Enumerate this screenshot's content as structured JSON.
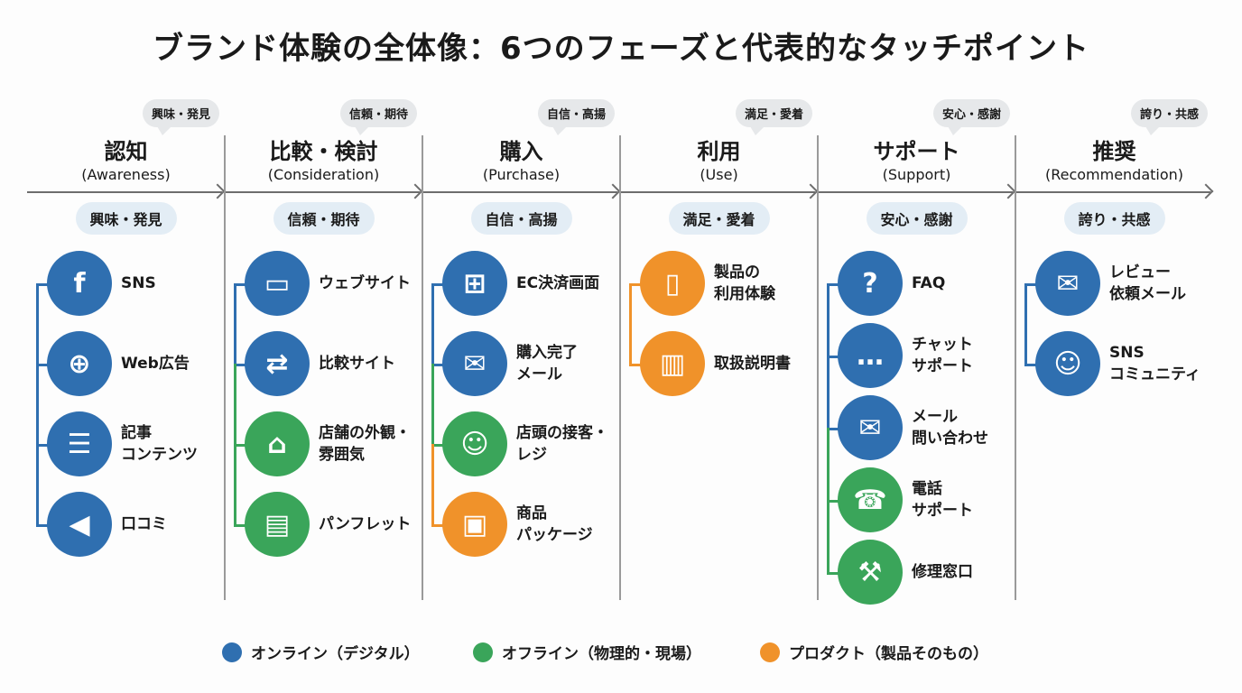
{
  "title": "ブランド体験の全体像：6つのフェーズと代表的なタッチポイント",
  "colors": {
    "online": "#2f6fb0",
    "offline": "#3aa55a",
    "product": "#f0922a"
  },
  "phases": [
    {
      "name": "認知",
      "en": "(Awareness)",
      "emotion": "興味・発見",
      "items": [
        {
          "label": "SNS",
          "icon": "sns-icon",
          "glyph": "f",
          "type": "online"
        },
        {
          "label": "Web広告",
          "icon": "globe-cursor-icon",
          "glyph": "⊕",
          "type": "online"
        },
        {
          "label": "記事\nコンテンツ",
          "icon": "article-icon",
          "glyph": "☰",
          "type": "online"
        },
        {
          "label": "口コミ",
          "icon": "megaphone-icon",
          "glyph": "◀",
          "type": "online"
        }
      ]
    },
    {
      "name": "比較・検討",
      "en": "(Consideration)",
      "emotion": "信頼・期待",
      "items": [
        {
          "label": "ウェブサイト",
          "icon": "monitor-search-icon",
          "glyph": "▭",
          "type": "online"
        },
        {
          "label": "比較サイト",
          "icon": "compare-docs-icon",
          "glyph": "⇄",
          "type": "online"
        },
        {
          "label": "店舗の外観・\n雰囲気",
          "icon": "storefront-icon",
          "glyph": "⌂",
          "type": "offline"
        },
        {
          "label": "パンフレット",
          "icon": "map-pamphlet-icon",
          "glyph": "▤",
          "type": "offline"
        }
      ]
    },
    {
      "name": "購入",
      "en": "(Purchase)",
      "emotion": "自信・高揚",
      "items": [
        {
          "label": "EC決済画面",
          "icon": "cart-card-icon",
          "glyph": "⊞",
          "type": "online"
        },
        {
          "label": "購入完了\nメール",
          "icon": "mail-check-icon",
          "glyph": "✉",
          "type": "online"
        },
        {
          "label": "店頭の接客・\nレジ",
          "icon": "cashier-icon",
          "glyph": "☺",
          "type": "offline"
        },
        {
          "label": "商品\nパッケージ",
          "icon": "package-icon",
          "glyph": "▣",
          "type": "product"
        }
      ]
    },
    {
      "name": "利用",
      "en": "(Use)",
      "emotion": "満足・愛着",
      "items": [
        {
          "label": "製品の\n利用体験",
          "icon": "smartphone-touch-icon",
          "glyph": "▯",
          "type": "product"
        },
        {
          "label": "取扱説明書",
          "icon": "manual-book-icon",
          "glyph": "▥",
          "type": "product"
        }
      ]
    },
    {
      "name": "サポート",
      "en": "(Support)",
      "emotion": "安心・感謝",
      "items": [
        {
          "label": "FAQ",
          "icon": "faq-icon",
          "glyph": "?",
          "type": "online"
        },
        {
          "label": "チャット\nサポート",
          "icon": "chat-headset-icon",
          "glyph": "…",
          "type": "online"
        },
        {
          "label": "メール\n問い合わせ",
          "icon": "mail-send-icon",
          "glyph": "✉",
          "type": "online"
        },
        {
          "label": "電話\nサポート",
          "icon": "phone-icon",
          "glyph": "☎",
          "type": "offline"
        },
        {
          "label": "修理窓口",
          "icon": "tools-icon",
          "glyph": "⚒",
          "type": "offline"
        }
      ]
    },
    {
      "name": "推奨",
      "en": "(Recommendation)",
      "emotion": "誇り・共感",
      "items": [
        {
          "label": "レビュー\n依頼メール",
          "icon": "mail-star-icon",
          "glyph": "✉",
          "type": "online"
        },
        {
          "label": "SNS\nコミュニティ",
          "icon": "community-icon",
          "glyph": "☺",
          "type": "online"
        }
      ]
    }
  ],
  "legend": [
    {
      "label": "オンライン（デジタル）",
      "type": "online"
    },
    {
      "label": "オフライン（物理的・現場）",
      "type": "offline"
    },
    {
      "label": "プロダクト（製品そのもの）",
      "type": "product"
    }
  ]
}
